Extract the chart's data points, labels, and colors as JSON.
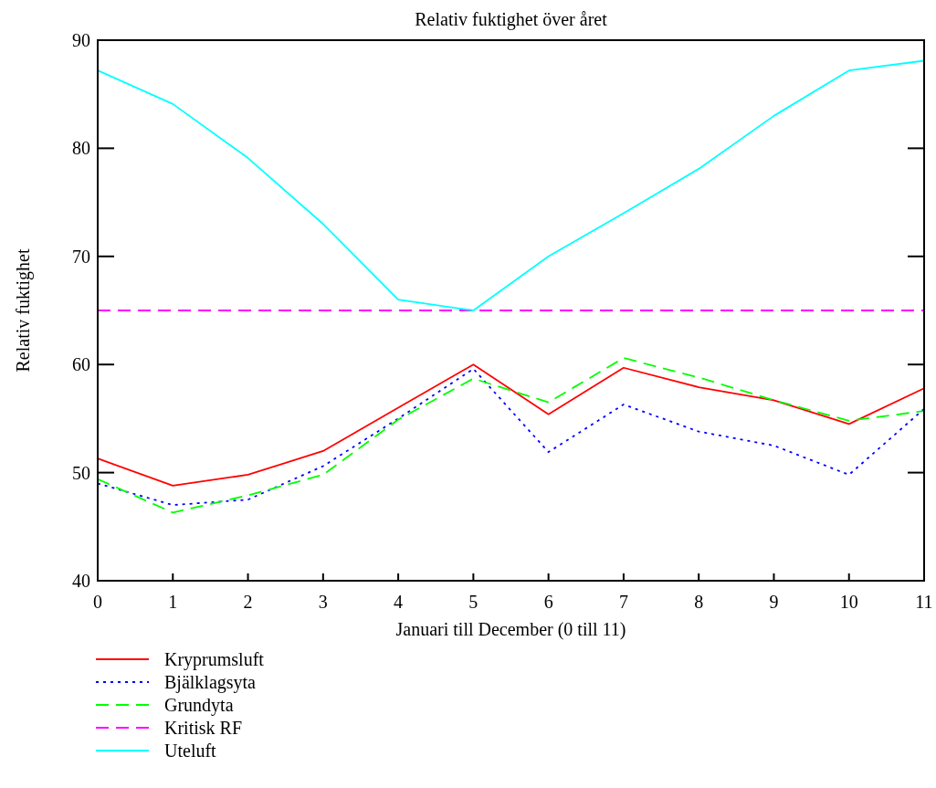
{
  "chart_data": {
    "type": "line",
    "title": "Relativ fuktighet över året",
    "xlabel": "Januari till December (0 till 11)",
    "ylabel": "Relativ fuktighet",
    "x": [
      0,
      1,
      2,
      3,
      4,
      5,
      6,
      7,
      8,
      9,
      10,
      11
    ],
    "xlim": [
      0,
      11
    ],
    "xticks": [
      0,
      1,
      2,
      3,
      4,
      5,
      6,
      7,
      8,
      9,
      10,
      11
    ],
    "ylim": [
      40,
      90
    ],
    "yticks": [
      40,
      50,
      60,
      70,
      80,
      90
    ],
    "legend": "bottom",
    "grid": false,
    "series": [
      {
        "name": "Kryprumsluft",
        "color": "#ff0000",
        "line_style": "solid",
        "values": [
          51.3,
          48.8,
          49.8,
          52,
          56,
          60,
          55.4,
          59.7,
          57.9,
          56.7,
          54.5,
          57.8
        ]
      },
      {
        "name": "Bjälklagsyta",
        "color": "#0000ff",
        "line_style": "dotted",
        "values": [
          49,
          47,
          47.5,
          50.6,
          55,
          59.6,
          51.9,
          56.3,
          53.8,
          52.5,
          49.8,
          55.9
        ]
      },
      {
        "name": "Grundyta",
        "color": "#00ff00",
        "line_style": "dashed",
        "values": [
          49.4,
          46.3,
          47.9,
          49.8,
          54.9,
          58.7,
          56.5,
          60.6,
          58.8,
          56.7,
          54.8,
          55.7
        ]
      },
      {
        "name": "Kritisk RF",
        "color": "#ff00ff",
        "line_style": "dashed",
        "values": [
          65,
          65,
          65,
          65,
          65,
          65,
          65,
          65,
          65,
          65,
          65,
          65
        ]
      },
      {
        "name": "Uteluft",
        "color": "#00ffff",
        "line_style": "solid",
        "values": [
          87.2,
          84.1,
          79.1,
          73,
          66,
          65,
          70,
          74,
          78.1,
          83,
          87.2,
          88.1
        ]
      }
    ]
  }
}
